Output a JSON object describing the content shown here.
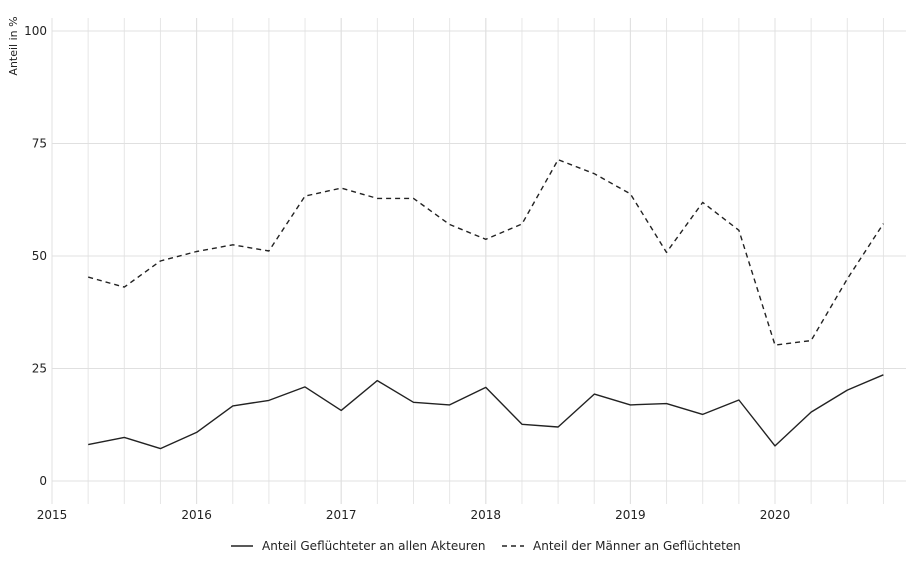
{
  "chart_data": {
    "type": "line",
    "title": "",
    "xlabel": "",
    "ylabel": "Anteil in %",
    "ylim": [
      0,
      100
    ],
    "xlim": [
      2015.0,
      2020.9
    ],
    "y_ticks": [
      0,
      25,
      50,
      75,
      100
    ],
    "x_ticks": [
      2015,
      2016,
      2017,
      2018,
      2019,
      2020
    ],
    "grid": true,
    "legend_position": "bottom",
    "x": [
      2015.25,
      2015.5,
      2015.75,
      2016.0,
      2016.25,
      2016.5,
      2016.75,
      2017.0,
      2017.25,
      2017.5,
      2017.75,
      2018.0,
      2018.25,
      2018.5,
      2018.75,
      2019.0,
      2019.25,
      2019.5,
      2019.75,
      2020.0,
      2020.25,
      2020.5,
      2020.75
    ],
    "series": [
      {
        "name": "Anteil Geflüchteter an allen Akteuren",
        "style": "solid",
        "color": "#222222",
        "values": [
          8.1,
          9.7,
          7.2,
          10.8,
          16.7,
          17.9,
          20.9,
          15.7,
          22.3,
          17.5,
          16.9,
          20.8,
          12.6,
          12.0,
          19.3,
          16.9,
          17.2,
          14.8,
          18.0,
          7.8,
          15.3,
          20.2,
          23.6
        ]
      },
      {
        "name": "Anteil der Männer an Geflüchteten",
        "style": "dashed",
        "color": "#222222",
        "values": [
          45.3,
          43.1,
          48.9,
          51.0,
          52.5,
          51.1,
          63.3,
          65.1,
          62.8,
          62.8,
          57.0,
          53.7,
          57.1,
          71.4,
          68.3,
          63.8,
          50.8,
          61.9,
          55.7,
          30.2,
          31.2,
          44.9,
          57.2
        ]
      }
    ]
  }
}
